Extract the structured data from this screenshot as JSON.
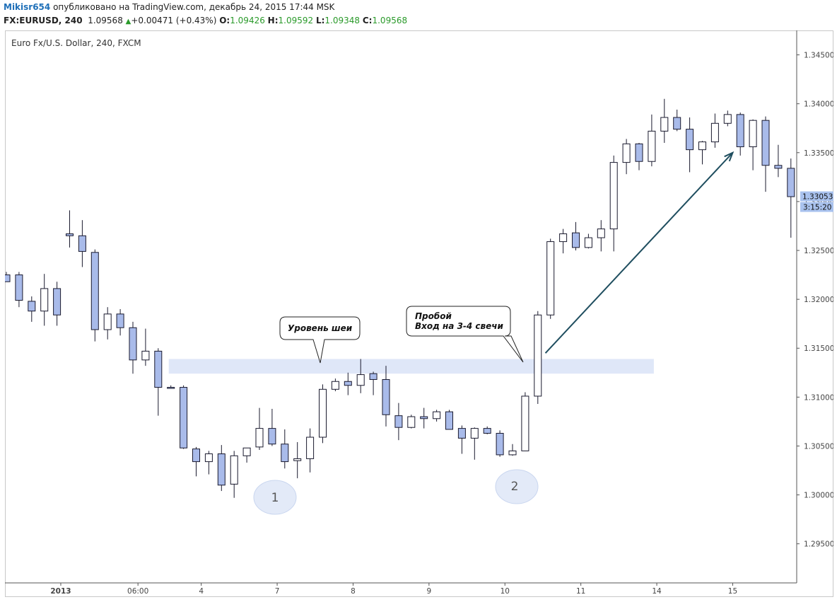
{
  "header": {
    "user": "Mikisr654",
    "published": " опубликовано на TradingView.com, декабрь 24, 2015 17:44 MSK",
    "symbol": "FX:EURUSD, 240",
    "last": "1.09568",
    "change": "+0.00471 (+0.43%)",
    "o_label": "O:",
    "o": "1.09426",
    "h_label": "H:",
    "h": "1.09592",
    "l_label": "L:",
    "l": "1.09348",
    "c_label": "C:",
    "c": "1.09568"
  },
  "colors": {
    "up_fill": "#ffffff",
    "down_fill": "#a9bbea",
    "candle_border": "#1a1a2e",
    "neckline_zone": "#dfe7f8",
    "arrow": "#1f4e5f",
    "badge_fill": "#e3eaf8",
    "price_label_bg": "#a9c2ee"
  },
  "chart_data": {
    "type": "candlestick",
    "title": "Euro Fx/U.S. Dollar, 240, FXCM",
    "ylim": [
      1.291,
      1.3475
    ],
    "y_ticks": [
      "1.29500",
      "1.30000",
      "1.30500",
      "1.31000",
      "1.31500",
      "1.32000",
      "1.32500",
      "1.33000",
      "1.33500",
      "1.34000",
      "1.34500"
    ],
    "x_ticks": [
      {
        "label": "2013",
        "i": 4.3,
        "bold": true
      },
      {
        "label": "06:00",
        "i": 10.4,
        "bold": false
      },
      {
        "label": "4",
        "i": 15.4,
        "bold": false
      },
      {
        "label": "7",
        "i": 21.4,
        "bold": false
      },
      {
        "label": "8",
        "i": 27.4,
        "bold": false
      },
      {
        "label": "9",
        "i": 33.4,
        "bold": false
      },
      {
        "label": "10",
        "i": 39.4,
        "bold": false
      },
      {
        "label": "11",
        "i": 45.4,
        "bold": false
      },
      {
        "label": "14",
        "i": 51.4,
        "bold": false
      },
      {
        "label": "15",
        "i": 57.4,
        "bold": false
      }
    ],
    "candles": [
      {
        "o": 1.3225,
        "h": 1.3228,
        "l": 1.3218,
        "c": 1.3218
      },
      {
        "o": 1.3225,
        "h": 1.3228,
        "l": 1.3192,
        "c": 1.3199
      },
      {
        "o": 1.3198,
        "h": 1.3203,
        "l": 1.3177,
        "c": 1.3188
      },
      {
        "o": 1.3188,
        "h": 1.3226,
        "l": 1.3173,
        "c": 1.3211
      },
      {
        "o": 1.3211,
        "h": 1.3218,
        "l": 1.3173,
        "c": 1.3184
      },
      {
        "o": 1.3267,
        "h": 1.3291,
        "l": 1.3253,
        "c": 1.3265
      },
      {
        "o": 1.3265,
        "h": 1.3281,
        "l": 1.3233,
        "c": 1.3249
      },
      {
        "o": 1.3248,
        "h": 1.3251,
        "l": 1.3157,
        "c": 1.3169
      },
      {
        "o": 1.3169,
        "h": 1.3192,
        "l": 1.3159,
        "c": 1.3185
      },
      {
        "o": 1.3185,
        "h": 1.319,
        "l": 1.3163,
        "c": 1.3171
      },
      {
        "o": 1.3171,
        "h": 1.3177,
        "l": 1.3124,
        "c": 1.3138
      },
      {
        "o": 1.3138,
        "h": 1.317,
        "l": 1.3132,
        "c": 1.3147
      },
      {
        "o": 1.3147,
        "h": 1.315,
        "l": 1.3081,
        "c": 1.311
      },
      {
        "o": 1.311,
        "h": 1.3112,
        "l": 1.3109,
        "c": 1.3109
      },
      {
        "o": 1.311,
        "h": 1.3112,
        "l": 1.3047,
        "c": 1.3048
      },
      {
        "o": 1.3047,
        "h": 1.3049,
        "l": 1.3019,
        "c": 1.3034
      },
      {
        "o": 1.3034,
        "h": 1.3045,
        "l": 1.3021,
        "c": 1.3042
      },
      {
        "o": 1.3042,
        "h": 1.3051,
        "l": 1.3004,
        "c": 1.301
      },
      {
        "o": 1.3011,
        "h": 1.3045,
        "l": 1.2997,
        "c": 1.304
      },
      {
        "o": 1.304,
        "h": 1.3047,
        "l": 1.3033,
        "c": 1.3048
      },
      {
        "o": 1.3049,
        "h": 1.3089,
        "l": 1.3046,
        "c": 1.3068
      },
      {
        "o": 1.3068,
        "h": 1.3088,
        "l": 1.305,
        "c": 1.3052
      },
      {
        "o": 1.3052,
        "h": 1.3067,
        "l": 1.3027,
        "c": 1.3034
      },
      {
        "o": 1.3035,
        "h": 1.3054,
        "l": 1.3017,
        "c": 1.3037
      },
      {
        "o": 1.3037,
        "h": 1.3068,
        "l": 1.3023,
        "c": 1.3059
      },
      {
        "o": 1.3059,
        "h": 1.3113,
        "l": 1.3053,
        "c": 1.3108
      },
      {
        "o": 1.3108,
        "h": 1.3119,
        "l": 1.3106,
        "c": 1.3116
      },
      {
        "o": 1.3116,
        "h": 1.3125,
        "l": 1.3102,
        "c": 1.3112
      },
      {
        "o": 1.3112,
        "h": 1.3139,
        "l": 1.3104,
        "c": 1.3123
      },
      {
        "o": 1.3124,
        "h": 1.3126,
        "l": 1.3102,
        "c": 1.3118
      },
      {
        "o": 1.3118,
        "h": 1.3132,
        "l": 1.307,
        "c": 1.3082
      },
      {
        "o": 1.3081,
        "h": 1.3094,
        "l": 1.3056,
        "c": 1.3069
      },
      {
        "o": 1.3069,
        "h": 1.3082,
        "l": 1.3068,
        "c": 1.308
      },
      {
        "o": 1.308,
        "h": 1.3089,
        "l": 1.3068,
        "c": 1.3078
      },
      {
        "o": 1.3078,
        "h": 1.3087,
        "l": 1.3075,
        "c": 1.3085
      },
      {
        "o": 1.3085,
        "h": 1.3087,
        "l": 1.3067,
        "c": 1.3067
      },
      {
        "o": 1.3068,
        "h": 1.3071,
        "l": 1.3042,
        "c": 1.3058
      },
      {
        "o": 1.3058,
        "h": 1.3069,
        "l": 1.3036,
        "c": 1.3068
      },
      {
        "o": 1.3068,
        "h": 1.307,
        "l": 1.3062,
        "c": 1.3063
      },
      {
        "o": 1.3063,
        "h": 1.3066,
        "l": 1.3039,
        "c": 1.3041
      },
      {
        "o": 1.3041,
        "h": 1.3052,
        "l": 1.304,
        "c": 1.3045
      },
      {
        "o": 1.3045,
        "h": 1.3105,
        "l": 1.3045,
        "c": 1.3101
      },
      {
        "o": 1.3101,
        "h": 1.3188,
        "l": 1.3093,
        "c": 1.3184
      },
      {
        "o": 1.3184,
        "h": 1.3262,
        "l": 1.318,
        "c": 1.3259
      },
      {
        "o": 1.3259,
        "h": 1.3272,
        "l": 1.3247,
        "c": 1.3267
      },
      {
        "o": 1.3268,
        "h": 1.3279,
        "l": 1.325,
        "c": 1.3253
      },
      {
        "o": 1.3253,
        "h": 1.3267,
        "l": 1.3252,
        "c": 1.3263
      },
      {
        "o": 1.3263,
        "h": 1.3281,
        "l": 1.3249,
        "c": 1.3272
      },
      {
        "o": 1.3272,
        "h": 1.3347,
        "l": 1.3249,
        "c": 1.334
      },
      {
        "o": 1.334,
        "h": 1.3364,
        "l": 1.3328,
        "c": 1.3359
      },
      {
        "o": 1.3359,
        "h": 1.336,
        "l": 1.3332,
        "c": 1.3341
      },
      {
        "o": 1.3341,
        "h": 1.3389,
        "l": 1.3336,
        "c": 1.3372
      },
      {
        "o": 1.3372,
        "h": 1.3405,
        "l": 1.336,
        "c": 1.3386
      },
      {
        "o": 1.3386,
        "h": 1.3394,
        "l": 1.3372,
        "c": 1.3374
      },
      {
        "o": 1.3374,
        "h": 1.3386,
        "l": 1.333,
        "c": 1.3353
      },
      {
        "o": 1.3353,
        "h": 1.3362,
        "l": 1.3338,
        "c": 1.3361
      },
      {
        "o": 1.3361,
        "h": 1.339,
        "l": 1.3355,
        "c": 1.338
      },
      {
        "o": 1.338,
        "h": 1.3393,
        "l": 1.3377,
        "c": 1.3389
      },
      {
        "o": 1.3389,
        "h": 1.3391,
        "l": 1.3347,
        "c": 1.3356
      },
      {
        "o": 1.3356,
        "h": 1.3384,
        "l": 1.3332,
        "c": 1.3383
      },
      {
        "o": 1.3383,
        "h": 1.3387,
        "l": 1.331,
        "c": 1.3337
      },
      {
        "o": 1.3337,
        "h": 1.3358,
        "l": 1.3325,
        "c": 1.3334
      },
      {
        "o": 1.3334,
        "h": 1.3344,
        "l": 1.3263,
        "c": 1.3305
      }
    ],
    "annotations": {
      "neckline_label": "Уровень шеи",
      "breakout_line1": "Пробой",
      "breakout_line2": "Вход на 3-4 свечи",
      "badge1": "1",
      "badge2": "2"
    },
    "neckline_zone": {
      "from_i": 13,
      "to_i": 51,
      "y_low": 1.3124,
      "y_high": 1.3139
    },
    "arrow": {
      "from_i": 42.6,
      "from_y": 1.3145,
      "to_i": 57.4,
      "to_y": 1.335
    },
    "last_price_label": "1.33053",
    "countdown_label": "3:15:20"
  }
}
